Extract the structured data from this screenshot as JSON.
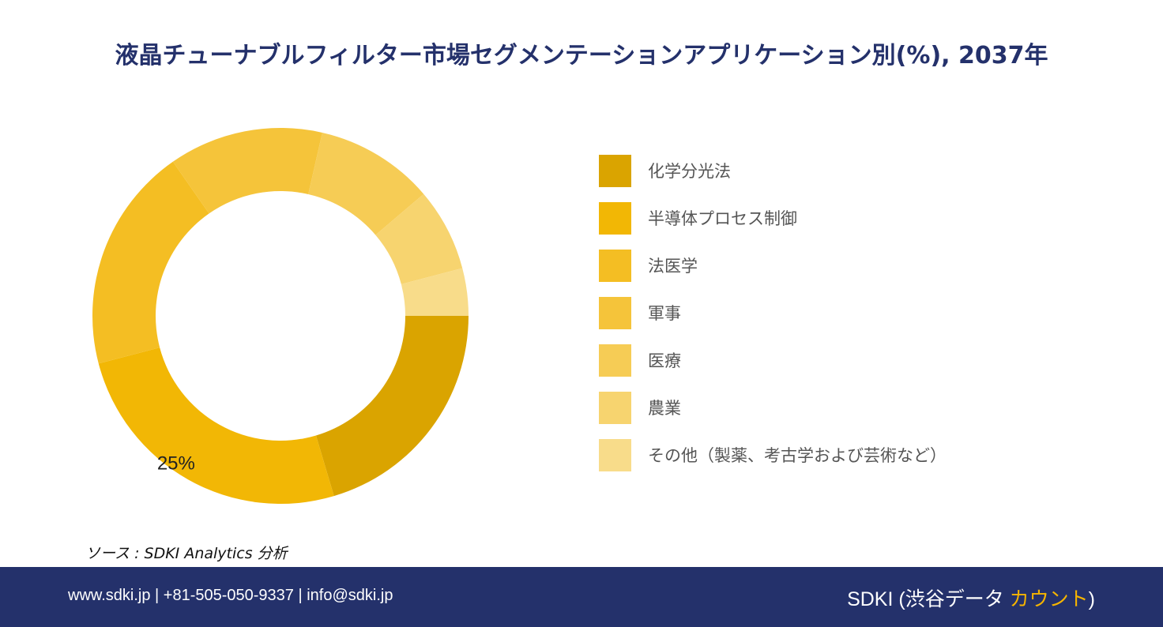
{
  "title": "液晶チューナブルフィルター市場セグメンテーションアプリケーション別(%), 2037年",
  "chart_data": {
    "type": "pie",
    "style": "donut",
    "categories": [
      "化学分光法",
      "半導体プロセス制御",
      "法医学",
      "軍事",
      "医療",
      "農業",
      "その他（製薬、考古学および芸術など）"
    ],
    "values": [
      20,
      25,
      19,
      13,
      10,
      7,
      4
    ],
    "colors": [
      "#daa400",
      "#f2b705",
      "#f4be23",
      "#f5c43a",
      "#f6cc55",
      "#f7d46f",
      "#f8dc8a"
    ],
    "data_labels": [
      {
        "category": "半導体プロセス制御",
        "text": "25%"
      }
    ],
    "legend_position": "right",
    "start_angle": "3 o'clock",
    "direction": "clockwise"
  },
  "legend": {
    "items": [
      {
        "label": "化学分光法",
        "color": "#daa400"
      },
      {
        "label": "半導体プロセス制御",
        "color": "#f2b705"
      },
      {
        "label": "法医学",
        "color": "#f4be23"
      },
      {
        "label": "軍事",
        "color": "#f5c43a"
      },
      {
        "label": "医療",
        "color": "#f6cc55"
      },
      {
        "label": "農業",
        "color": "#f7d46f"
      },
      {
        "label": "その他（製薬、考古学および芸術など）",
        "color": "#f8dc8a"
      }
    ]
  },
  "source": "ソース : SDKI Analytics 分析",
  "footer": {
    "contact": "www.sdki.jp | +81-505-050-9337 | info@sdki.jp",
    "brand_prefix": "SDKI (渋谷データ ",
    "brand_accent": "カウント",
    "brand_suffix": ")",
    "accent_color": "#f5b400",
    "background_color": "#24316b"
  }
}
